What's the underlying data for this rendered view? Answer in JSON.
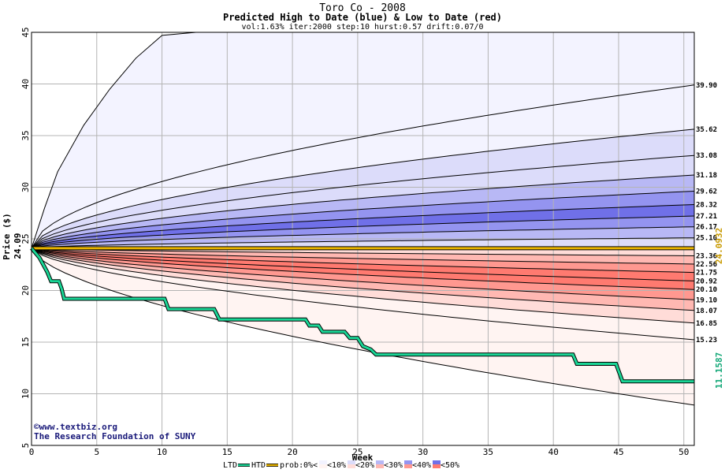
{
  "chart_data": {
    "type": "area",
    "title": "Toro Co - 2008",
    "subtitle": "Predicted High to Date (blue) &  Low to Date (red)",
    "params": "vol:1.63% iter:2000 step:10 hurst:0.57 drift:0.07/0",
    "xlabel": "Week",
    "ylabel": "Price ($)",
    "xlim": [
      0,
      50.8
    ],
    "ylim": [
      5,
      45
    ],
    "x_ticks": [
      0,
      5,
      10,
      15,
      20,
      25,
      30,
      35,
      40,
      45,
      50
    ],
    "y_ticks": [
      5,
      10,
      15,
      20,
      25,
      30,
      35,
      40,
      45
    ],
    "grid": true,
    "start_price": 24.09,
    "start_price_label": "24.09",
    "high_quantiles": [
      {
        "end": 39.9,
        "label": "39.90",
        "top_line_value_at_10": 45.0
      },
      {
        "end": 35.62,
        "label": "35.62"
      },
      {
        "end": 33.08,
        "label": "33.08"
      },
      {
        "end": 31.18,
        "label": "31.18"
      },
      {
        "end": 29.62,
        "label": "29.62"
      },
      {
        "end": 28.32,
        "label": "28.32"
      },
      {
        "end": 27.21,
        "label": "27.21"
      },
      {
        "end": 26.17,
        "label": "26.17"
      },
      {
        "end": 25.1,
        "label": "25.10"
      }
    ],
    "high_outer_curve": [
      [
        0,
        24.09
      ],
      [
        1,
        28
      ],
      [
        2,
        31.5
      ],
      [
        4,
        36
      ],
      [
        6,
        39.5
      ],
      [
        8,
        42.5
      ],
      [
        10,
        44.7
      ],
      [
        12.6,
        45
      ]
    ],
    "low_quantiles": [
      {
        "end": 23.36,
        "label": "23.36"
      },
      {
        "end": 22.56,
        "label": "22.56"
      },
      {
        "end": 21.75,
        "label": "21.75"
      },
      {
        "end": 20.92,
        "label": "20.92"
      },
      {
        "end": 20.1,
        "label": "20.10"
      },
      {
        "end": 19.1,
        "label": "19.10"
      },
      {
        "end": 18.07,
        "label": "18.07"
      },
      {
        "end": 16.85,
        "label": "16.85"
      },
      {
        "end": 15.23,
        "label": "15.23"
      }
    ],
    "low_outer_end": 8.9,
    "ltd_path": [
      [
        0,
        24.09
      ],
      [
        0.6,
        23.2
      ],
      [
        1.2,
        21.8
      ],
      [
        1.5,
        20.9
      ],
      [
        2.1,
        20.9
      ],
      [
        2.3,
        20.2
      ],
      [
        2.5,
        19.2
      ],
      [
        10.2,
        19.2
      ],
      [
        10.5,
        18.2
      ],
      [
        14,
        18.2
      ],
      [
        14.4,
        17.2
      ],
      [
        21,
        17.2
      ],
      [
        21.3,
        16.6
      ],
      [
        22,
        16.6
      ],
      [
        22.3,
        16.0
      ],
      [
        24,
        16.0
      ],
      [
        24.4,
        15.4
      ],
      [
        25,
        15.4
      ],
      [
        25.4,
        14.6
      ],
      [
        26,
        14.3
      ],
      [
        26.4,
        13.8
      ],
      [
        41.5,
        13.8
      ],
      [
        41.8,
        12.9
      ],
      [
        44.8,
        12.9
      ],
      [
        45.3,
        11.2
      ],
      [
        50.8,
        11.2
      ]
    ],
    "htd_value": 24.0932,
    "right_labels": {
      "htd": "24.0932",
      "ltd": "11.1587"
    },
    "series": [
      {
        "name": "LTD",
        "color": "#1ad696"
      },
      {
        "name": "HTD",
        "color": "#e8b400"
      }
    ],
    "probability_legend": {
      "label": "prob:",
      "items": [
        {
          "label": "0%<",
          "blue": "#ffffff",
          "red": "#ffffff"
        },
        {
          "label": "<10%",
          "blue": "#f3f3ff",
          "red": "#fff4f2"
        },
        {
          "label": "<20%",
          "blue": "#dcdcfa",
          "red": "#ffdcd8"
        },
        {
          "label": "<30%",
          "blue": "#b8b8f5",
          "red": "#ffb8b2"
        },
        {
          "label": "<40%",
          "blue": "#9494f0",
          "red": "#ff9890"
        },
        {
          "label": "<50%",
          "blue": "#7070e8",
          "red": "#ff7a70"
        }
      ]
    }
  },
  "credits": {
    "line1": "©www.textbiz.org",
    "line2": "The Research Foundation of SUNY"
  },
  "colors": {
    "grid": "#b4b4b4",
    "ltd": "#1ad696",
    "htd": "#e8b400",
    "credit": "#1a1a7a"
  }
}
